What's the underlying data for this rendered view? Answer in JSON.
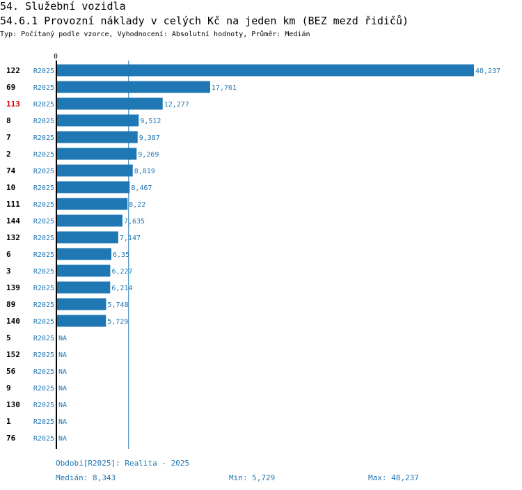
{
  "header": {
    "title": "54. Služební vozidla",
    "subtitle": "54.6.1 Provozní náklady v celých Kč na jeden km (BEZ mezd řidičů)",
    "description": "Typ: Počítaný podle vzorce, Vyhodnocení: Absolutní hodnoty, Průměr: Medián"
  },
  "chart_data": {
    "type": "bar",
    "orientation": "horizontal",
    "xmin": 0,
    "xmax": 48237,
    "x_tick_label": "0",
    "median": 8343,
    "bar_color": "#1f77b4",
    "highlight_color": "#dd0000",
    "series_name": "R2025",
    "rows": [
      {
        "id": "122",
        "series": "R2025",
        "value": 48237,
        "label": "48,237",
        "highlight": false
      },
      {
        "id": "69",
        "series": "R2025",
        "value": 17761,
        "label": "17,761",
        "highlight": false
      },
      {
        "id": "113",
        "series": "R2025",
        "value": 12277,
        "label": "12,277",
        "highlight": true
      },
      {
        "id": "8",
        "series": "R2025",
        "value": 9512,
        "label": "9,512",
        "highlight": false
      },
      {
        "id": "7",
        "series": "R2025",
        "value": 9387,
        "label": "9,387",
        "highlight": false
      },
      {
        "id": "2",
        "series": "R2025",
        "value": 9269,
        "label": "9,269",
        "highlight": false
      },
      {
        "id": "74",
        "series": "R2025",
        "value": 8819,
        "label": "8,819",
        "highlight": false
      },
      {
        "id": "10",
        "series": "R2025",
        "value": 8467,
        "label": "8,467",
        "highlight": false
      },
      {
        "id": "111",
        "series": "R2025",
        "value": 8220,
        "label": "8,22",
        "highlight": false
      },
      {
        "id": "144",
        "series": "R2025",
        "value": 7635,
        "label": "7,635",
        "highlight": false
      },
      {
        "id": "132",
        "series": "R2025",
        "value": 7147,
        "label": "7,147",
        "highlight": false
      },
      {
        "id": "6",
        "series": "R2025",
        "value": 6350,
        "label": "6,35",
        "highlight": false
      },
      {
        "id": "3",
        "series": "R2025",
        "value": 6227,
        "label": "6,227",
        "highlight": false
      },
      {
        "id": "139",
        "series": "R2025",
        "value": 6214,
        "label": "6,214",
        "highlight": false
      },
      {
        "id": "89",
        "series": "R2025",
        "value": 5748,
        "label": "5,748",
        "highlight": false
      },
      {
        "id": "140",
        "series": "R2025",
        "value": 5729,
        "label": "5,729",
        "highlight": false
      },
      {
        "id": "5",
        "series": "R2025",
        "value": null,
        "label": "NA",
        "highlight": false
      },
      {
        "id": "152",
        "series": "R2025",
        "value": null,
        "label": "NA",
        "highlight": false
      },
      {
        "id": "56",
        "series": "R2025",
        "value": null,
        "label": "NA",
        "highlight": false
      },
      {
        "id": "9",
        "series": "R2025",
        "value": null,
        "label": "NA",
        "highlight": false
      },
      {
        "id": "130",
        "series": "R2025",
        "value": null,
        "label": "NA",
        "highlight": false
      },
      {
        "id": "1",
        "series": "R2025",
        "value": null,
        "label": "NA",
        "highlight": false
      },
      {
        "id": "76",
        "series": "R2025",
        "value": null,
        "label": "NA",
        "highlight": false
      }
    ]
  },
  "footer": {
    "period": "Období[R2025]: Realita - 2025",
    "median": "Medián: 8,343",
    "min": "Min: 5,729",
    "max": "Max: 48,237"
  }
}
